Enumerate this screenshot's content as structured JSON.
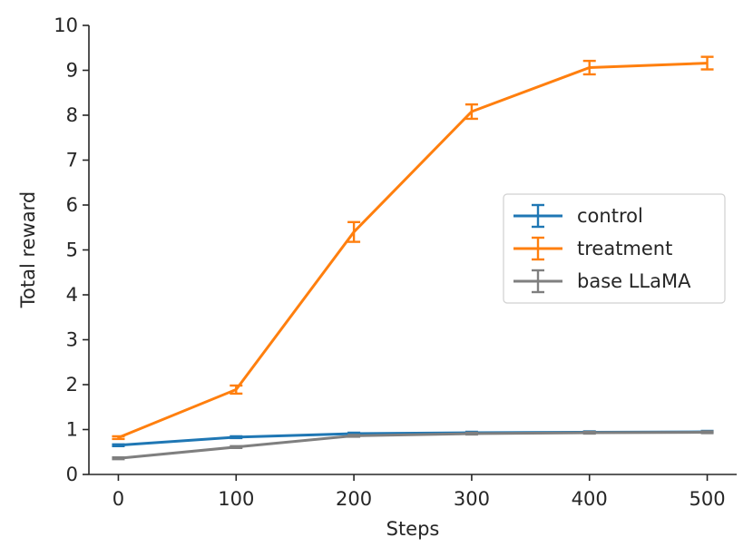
{
  "chart_data": {
    "type": "line",
    "xlabel": "Steps",
    "ylabel": "Total reward",
    "xlim": [
      -25,
      525
    ],
    "ylim": [
      0,
      10
    ],
    "x_ticks": [
      "0",
      "100",
      "200",
      "300",
      "400",
      "500"
    ],
    "y_ticks": [
      "0",
      "1",
      "2",
      "3",
      "4",
      "5",
      "6",
      "7",
      "8",
      "9",
      "10"
    ],
    "x": [
      0,
      100,
      200,
      300,
      400,
      500
    ],
    "grid": false,
    "legend_position": "center-right",
    "series": [
      {
        "name": "control",
        "color": "#1f77b4",
        "values": [
          0.65,
          0.83,
          0.91,
          0.93,
          0.94,
          0.95
        ],
        "errors": [
          0.02,
          0.02,
          0.02,
          0.02,
          0.02,
          0.02
        ]
      },
      {
        "name": "treatment",
        "color": "#ff7f0e",
        "values": [
          0.82,
          1.89,
          5.4,
          8.08,
          9.06,
          9.16
        ],
        "errors": [
          0.03,
          0.09,
          0.22,
          0.16,
          0.15,
          0.14
        ]
      },
      {
        "name": "base LLaMA",
        "color": "#7f7f7f",
        "values": [
          0.36,
          0.61,
          0.86,
          0.91,
          0.93,
          0.94
        ],
        "errors": [
          0.02,
          0.02,
          0.02,
          0.02,
          0.02,
          0.02
        ]
      }
    ]
  }
}
